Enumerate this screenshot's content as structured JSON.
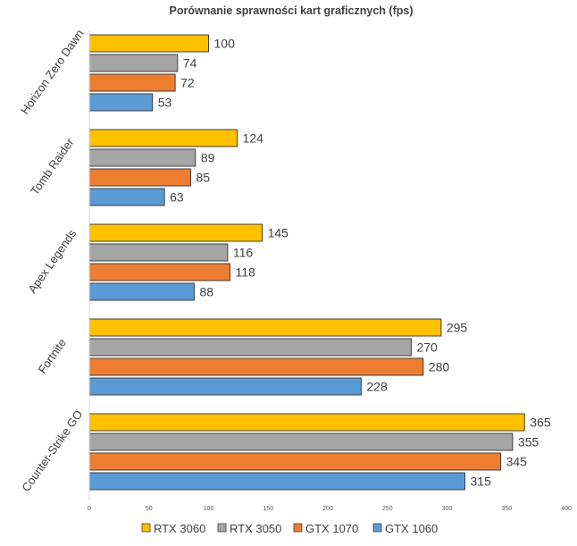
{
  "chart_data": {
    "type": "bar",
    "orientation": "horizontal",
    "title": "Porównanie sprawności kart graficznych (fps)",
    "categories": [
      "Horizon Zero Dawn",
      "Tomb Raider",
      "Apex Legends",
      "Fortnite",
      "Counter-Strike GO"
    ],
    "series": [
      {
        "name": "RTX 3060",
        "color": "#FFC000",
        "values": [
          100,
          124,
          145,
          295,
          365
        ]
      },
      {
        "name": "RTX 3050",
        "color": "#A5A5A5",
        "values": [
          74,
          89,
          116,
          270,
          355
        ]
      },
      {
        "name": "GTX 1070",
        "color": "#ED7D31",
        "values": [
          72,
          85,
          118,
          280,
          345
        ]
      },
      {
        "name": "GTX 1060",
        "color": "#5B9BD5",
        "values": [
          53,
          63,
          88,
          228,
          315
        ]
      }
    ],
    "xlim": [
      0,
      400
    ],
    "xticks": [
      "0",
      "50",
      "100",
      "150",
      "200",
      "250",
      "300",
      "350",
      "400"
    ],
    "data_labels": true,
    "grid": false,
    "legend_position": "bottom"
  }
}
